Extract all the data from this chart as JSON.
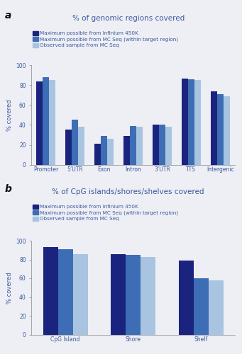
{
  "panel_a": {
    "title": "% of genomic regions covered",
    "categories": [
      "Promoter",
      "5’UTR",
      "Exon",
      "Intron",
      "3’UTR",
      "TTS",
      "Intergenic"
    ],
    "series": {
      "infinium": [
        84,
        35,
        21,
        29,
        40,
        87,
        74
      ],
      "mc_seq_max": [
        88,
        45,
        29,
        39,
        40,
        86,
        71
      ],
      "mc_seq_obs": [
        85,
        38,
        26,
        38,
        38,
        85,
        69
      ]
    },
    "ylabel": "% covered",
    "ylim": [
      0,
      100
    ],
    "yticks": [
      0,
      20,
      40,
      60,
      80,
      100
    ]
  },
  "panel_b": {
    "title": "% of CpG islands/shores/shelves covered",
    "categories": [
      "CpG Island",
      "Shore",
      "Shelf"
    ],
    "series": {
      "infinium": [
        93,
        86,
        79
      ],
      "mc_seq_max": [
        91,
        85,
        60
      ],
      "mc_seq_obs": [
        86,
        83,
        58
      ]
    },
    "ylabel": "% covered",
    "ylim": [
      0,
      100
    ],
    "yticks": [
      0,
      20,
      40,
      60,
      80,
      100
    ]
  },
  "colors": {
    "infinium": "#1a237e",
    "mc_seq_max": "#3d6db5",
    "mc_seq_obs": "#a8c4e0"
  },
  "legend_labels": [
    "Maximum possible from Infinium 450K",
    "Maximum possible from MC Seq (within target region)",
    "Observed sample from MC Seq"
  ],
  "title_color": "#3a5a9b",
  "label_color": "#3a5a9b",
  "tick_label_color": "#3a5a9b",
  "panel_label_color": "#111111",
  "bar_width": 0.22,
  "background_color": "#eeeef5"
}
